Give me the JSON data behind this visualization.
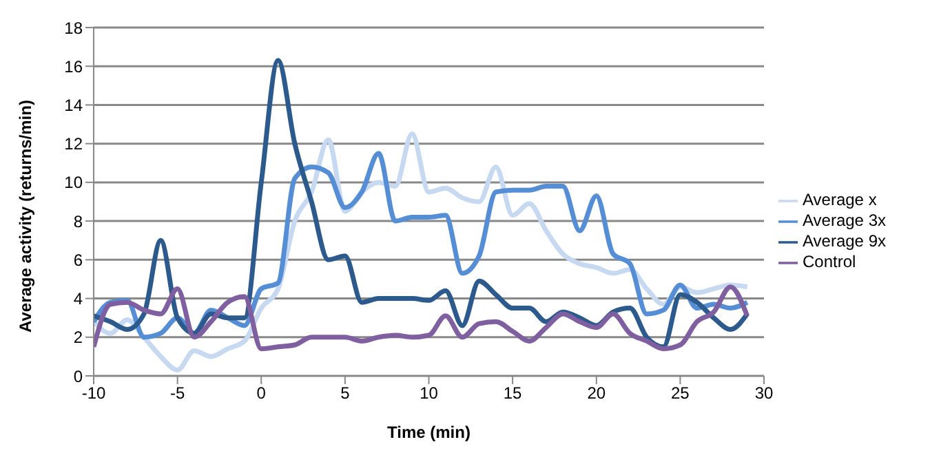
{
  "chart_data": {
    "type": "line",
    "xlabel": "Time (min)",
    "ylabel": "Average activity (returns/min)",
    "x": [
      -10,
      -9,
      -8,
      -7,
      -6,
      -5,
      -4,
      -3,
      -2,
      -1,
      0,
      1,
      2,
      3,
      4,
      5,
      6,
      7,
      8,
      9,
      10,
      11,
      12,
      13,
      14,
      15,
      16,
      17,
      18,
      19,
      20,
      21,
      22,
      23,
      24,
      25,
      26,
      27,
      28,
      29
    ],
    "series": [
      {
        "name": "Average x",
        "color": "#c6d9f1",
        "values": [
          2.8,
          2.2,
          2.9,
          2.0,
          1.0,
          0.3,
          1.3,
          1.0,
          1.4,
          1.8,
          3.5,
          4.5,
          8,
          9.5,
          12.2,
          8.5,
          9.5,
          10,
          9.8,
          12.5,
          9.5,
          9.7,
          9.2,
          9,
          10.8,
          8.3,
          8.9,
          7.5,
          6.3,
          5.8,
          5.6,
          5.3,
          5.5,
          4.5,
          3.7,
          4.6,
          4.3,
          4.5,
          4.7,
          4.6
        ]
      },
      {
        "name": "Average 3x",
        "color": "#558ed5",
        "values": [
          2.8,
          3.8,
          3.9,
          2.0,
          2.2,
          3.0,
          2.2,
          3.4,
          3.0,
          2.6,
          4.5,
          4.8,
          10.2,
          10.8,
          10.5,
          8.7,
          9.5,
          11.5,
          8.0,
          8.2,
          8.2,
          8.3,
          5.3,
          6.2,
          9.5,
          9.6,
          9.6,
          9.8,
          9.8,
          7.5,
          9.3,
          6.3,
          5.8,
          3.2,
          3.4,
          4.7,
          3.5,
          3.7,
          3.5,
          3.8
        ]
      },
      {
        "name": "Average 9x",
        "color": "#2c5a8c",
        "values": [
          3.1,
          2.8,
          2.4,
          3.2,
          7.0,
          3.0,
          2.2,
          3.2,
          3.0,
          3.0,
          10,
          16.3,
          12.0,
          9.0,
          6.0,
          6.2,
          3.8,
          4.0,
          4.0,
          4.0,
          3.9,
          4.4,
          2.6,
          4.9,
          4.2,
          3.5,
          3.5,
          2.8,
          3.3,
          3.0,
          2.6,
          3.3,
          3.5,
          2.0,
          1.5,
          4.2,
          3.8,
          3.0,
          2.4,
          3.2
        ]
      },
      {
        "name": "Control",
        "color": "#7f5fa0",
        "values": [
          1.5,
          3.7,
          3.8,
          3.4,
          3.2,
          4.5,
          2.0,
          2.8,
          3.8,
          4.1,
          1.4,
          1.5,
          1.6,
          2.0,
          2.0,
          2.0,
          1.8,
          2.0,
          2.1,
          2.0,
          2.1,
          3.1,
          2.0,
          2.7,
          2.8,
          2.3,
          1.8,
          2.5,
          3.2,
          2.8,
          2.5,
          3.2,
          2.2,
          1.8,
          1.4,
          1.6,
          2.8,
          3.3,
          4.6,
          3.1
        ]
      }
    ],
    "xlim": [
      -10,
      30
    ],
    "xticks": [
      -10,
      -5,
      0,
      5,
      10,
      15,
      20,
      25,
      30
    ],
    "ylim": [
      0,
      18
    ],
    "yticks": [
      0,
      2,
      4,
      6,
      8,
      10,
      12,
      14,
      16,
      18
    ],
    "grid": "y",
    "legend": "right",
    "marker": "none",
    "line_style": "solid"
  }
}
